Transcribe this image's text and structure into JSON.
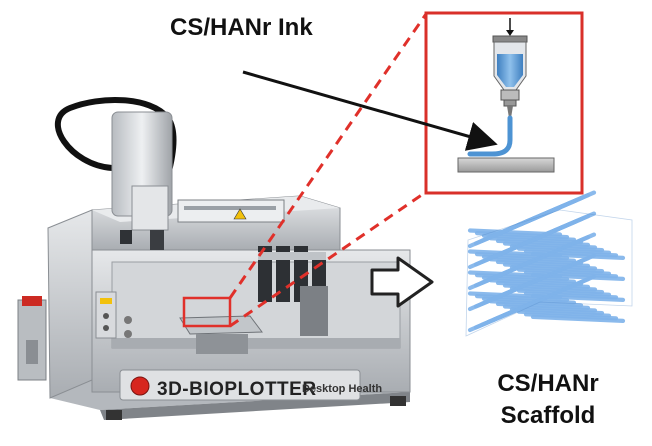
{
  "labels": {
    "ink": "CS/HANr Ink",
    "scaffold_line1": "CS/HANr",
    "scaffold_line2": "Scaffold",
    "machine_brand": "3D-BIOPLOTTER",
    "machine_sub": "Desktop Health"
  },
  "colors": {
    "highlight": "#e0302a",
    "ink_blue": "#5a9fd8",
    "scaffold_blue": "#7fb3ea",
    "machine_grey": "#c9ccd0",
    "arrow_black": "#111111"
  },
  "icons": {
    "process_arrow": "outline-right-arrow-icon",
    "machine": "bioprinter-illustration",
    "syringe": "syringe-icon",
    "scaffold": "lattice-scaffold-icon"
  }
}
